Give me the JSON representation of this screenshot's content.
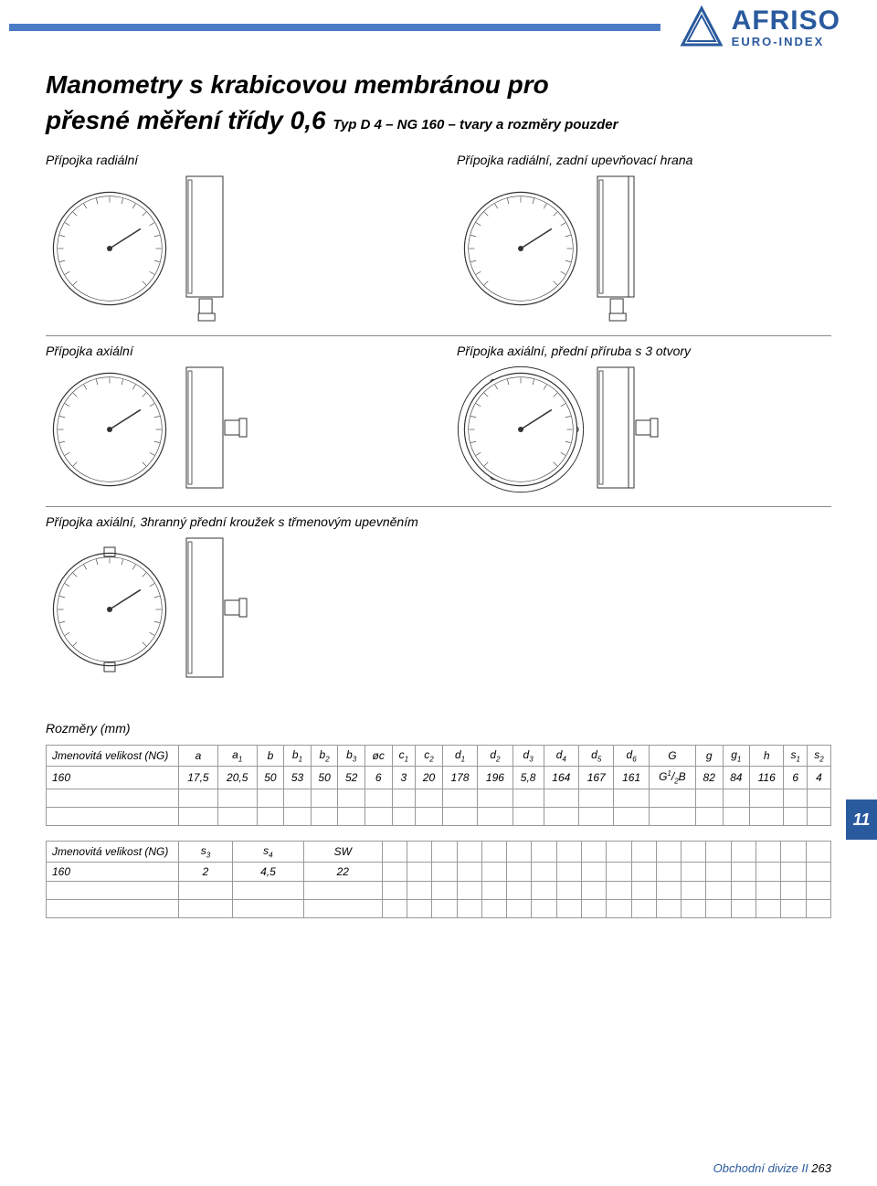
{
  "brand": {
    "name": "AFRISO",
    "sub": "EURO-INDEX",
    "stripe_color": "#4a7bc4",
    "brand_color": "#2a5a9e"
  },
  "title": {
    "line1": "Manometry s krabicovou membránou pro",
    "line2_main": "přesné měření třídy 0,6",
    "line2_sub": " Typ D 4 – NG 160 – tvary a rozměry pouzder"
  },
  "variants": [
    {
      "cols": [
        {
          "label": "Přípojka radiální"
        },
        {
          "label": "Přípojka radiální, zadní upevňovací hrana"
        }
      ]
    },
    {
      "cols": [
        {
          "label": "Přípojka axiální"
        },
        {
          "label": "Přípojka axiální, přední příruba s 3 otvory"
        }
      ]
    },
    {
      "cols": [
        {
          "label": "Přípojka axiální, 3hranný přední kroužek s třmenovým upevněním"
        }
      ]
    }
  ],
  "side_tab": "11",
  "tables": {
    "heading": "Rozměry (mm)",
    "table1": {
      "head_first": "Jmenovitá velikost (NG)",
      "cols": [
        "a",
        "a1",
        "b",
        "b1",
        "b2",
        "b3",
        "øc",
        "c1",
        "c2",
        "d1",
        "d2",
        "d3",
        "d4",
        "d5",
        "d6",
        "G",
        "g",
        "g1",
        "h",
        "s1",
        "s2"
      ],
      "subs": [
        "",
        "1",
        "",
        "1",
        "2",
        "3",
        "",
        "1",
        "2",
        "1",
        "2",
        "3",
        "4",
        "5",
        "6",
        "",
        "",
        "1",
        "",
        "1",
        "2"
      ],
      "rows": [
        {
          "first": "160",
          "cells": [
            "17,5",
            "20,5",
            "50",
            "53",
            "50",
            "52",
            "6",
            "3",
            "20",
            "178",
            "196",
            "5,8",
            "164",
            "167",
            "161",
            "G1/2B",
            "82",
            "84",
            "116",
            "6",
            "4"
          ]
        }
      ],
      "empty_rows": 2
    },
    "table2": {
      "head_first": "Jmenovitá velikost (NG)",
      "cols": [
        "s3",
        "s4",
        "SW"
      ],
      "subs": [
        "3",
        "4",
        ""
      ],
      "rows": [
        {
          "first": "160",
          "cells": [
            "2",
            "4,5",
            "22"
          ]
        }
      ],
      "empty_rows": 2,
      "filler_cols": 18
    }
  },
  "footer": {
    "text": "Obchodní divize II ",
    "page": "263"
  },
  "diagram_colors": {
    "stroke": "#333333",
    "fill": "#ffffff",
    "hatch": "#888888"
  }
}
